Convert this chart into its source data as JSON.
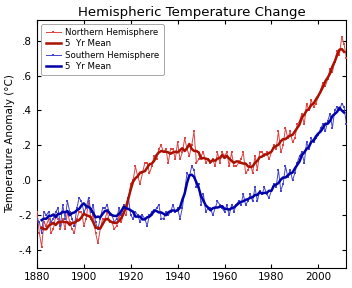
{
  "title": "Hemispheric Temperature Change",
  "ylabel": "Temperature Anomaly (°C)",
  "xlim": [
    1880,
    2012
  ],
  "ylim": [
    -0.5,
    0.92
  ],
  "yticks": [
    -0.4,
    -0.2,
    0.0,
    0.2,
    0.4,
    0.6,
    0.8
  ],
  "ytick_labels": [
    "-.4",
    "-.2",
    ".0",
    ".2",
    ".4",
    ".6",
    ".8"
  ],
  "xticks": [
    1880,
    1900,
    1920,
    1940,
    1960,
    1980,
    2000
  ],
  "north_color": "#dd4444",
  "south_color": "#4444cc",
  "north_mean_color": "#aa1100",
  "south_mean_color": "#0000aa",
  "legend_labels": [
    "Northern Hemisphere",
    "5  Yr Mean",
    "Southern Hemisphere",
    "5  Yr Mean"
  ],
  "north_annual": [
    -0.18,
    -0.3,
    -0.38,
    -0.24,
    -0.26,
    -0.22,
    -0.3,
    -0.28,
    -0.2,
    -0.22,
    -0.28,
    -0.22,
    -0.28,
    -0.18,
    -0.24,
    -0.28,
    -0.3,
    -0.22,
    -0.18,
    -0.18,
    -0.26,
    -0.22,
    -0.12,
    -0.22,
    -0.2,
    -0.3,
    -0.36,
    -0.28,
    -0.22,
    -0.22,
    -0.18,
    -0.24,
    -0.24,
    -0.28,
    -0.26,
    -0.2,
    -0.24,
    -0.18,
    -0.2,
    -0.12,
    -0.02,
    0.0,
    0.08,
    0.02,
    -0.02,
    0.04,
    0.1,
    0.1,
    0.04,
    0.08,
    0.14,
    0.12,
    0.18,
    0.2,
    0.16,
    0.18,
    0.1,
    0.18,
    0.18,
    0.12,
    0.22,
    0.12,
    0.16,
    0.24,
    0.18,
    0.14,
    0.2,
    0.28,
    0.1,
    0.12,
    0.14,
    0.16,
    0.1,
    0.12,
    0.1,
    0.12,
    0.08,
    0.16,
    0.1,
    0.16,
    0.14,
    0.16,
    0.08,
    0.16,
    0.08,
    0.08,
    0.1,
    0.12,
    0.16,
    0.04,
    0.06,
    0.1,
    0.04,
    0.14,
    0.06,
    0.16,
    0.16,
    0.14,
    0.16,
    0.12,
    0.16,
    0.2,
    0.18,
    0.28,
    0.16,
    0.2,
    0.3,
    0.24,
    0.28,
    0.22,
    0.24,
    0.32,
    0.34,
    0.38,
    0.32,
    0.44,
    0.4,
    0.46,
    0.42,
    0.44,
    0.48,
    0.52,
    0.56,
    0.54,
    0.58,
    0.64,
    0.62,
    0.68,
    0.74,
    0.72,
    0.82,
    0.78,
    0.7,
    0.66
  ],
  "south_annual": [
    -0.22,
    -0.24,
    -0.3,
    -0.18,
    -0.2,
    -0.18,
    -0.24,
    -0.22,
    -0.18,
    -0.16,
    -0.26,
    -0.14,
    -0.22,
    -0.12,
    -0.18,
    -0.22,
    -0.26,
    -0.16,
    -0.1,
    -0.12,
    -0.18,
    -0.16,
    -0.1,
    -0.18,
    -0.14,
    -0.24,
    -0.28,
    -0.22,
    -0.16,
    -0.16,
    -0.14,
    -0.2,
    -0.2,
    -0.24,
    -0.22,
    -0.16,
    -0.2,
    -0.14,
    -0.16,
    -0.1,
    -0.2,
    -0.22,
    -0.18,
    -0.2,
    -0.24,
    -0.2,
    -0.22,
    -0.26,
    -0.2,
    -0.18,
    -0.18,
    -0.16,
    -0.14,
    -0.22,
    -0.22,
    -0.18,
    -0.2,
    -0.18,
    -0.14,
    -0.18,
    -0.16,
    -0.22,
    -0.16,
    -0.06,
    0.04,
    0.02,
    0.08,
    0.06,
    -0.04,
    -0.02,
    -0.14,
    -0.08,
    -0.18,
    -0.16,
    -0.16,
    -0.2,
    -0.16,
    -0.12,
    -0.14,
    -0.16,
    -0.18,
    -0.14,
    -0.2,
    -0.14,
    -0.18,
    -0.14,
    -0.12,
    -0.14,
    -0.08,
    -0.14,
    -0.12,
    -0.08,
    -0.12,
    -0.04,
    -0.12,
    -0.06,
    -0.08,
    -0.04,
    -0.08,
    -0.1,
    -0.06,
    -0.02,
    -0.04,
    0.06,
    -0.06,
    -0.02,
    0.08,
    0.02,
    0.06,
    0.0,
    0.04,
    0.1,
    0.14,
    0.16,
    0.1,
    0.22,
    0.18,
    0.24,
    0.22,
    0.24,
    0.26,
    0.3,
    0.32,
    0.28,
    0.34,
    0.38,
    0.3,
    0.4,
    0.42,
    0.4,
    0.44,
    0.42,
    0.32,
    0.36
  ]
}
